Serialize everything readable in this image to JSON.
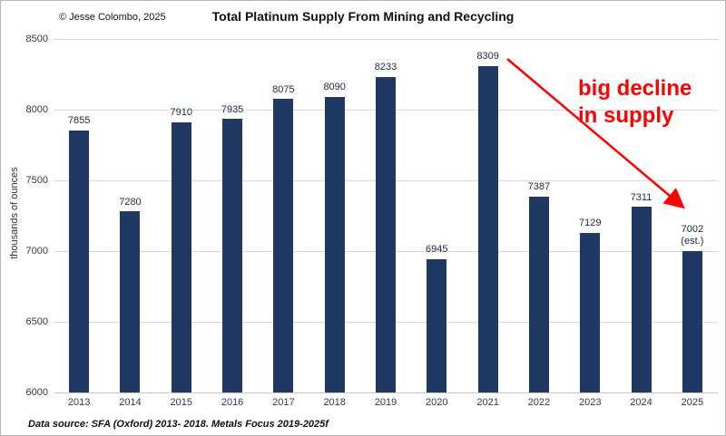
{
  "header": {
    "copyright": "© Jesse Colombo, 2025",
    "title": "Total Platinum Supply From Mining and Recycling"
  },
  "annotation": {
    "line1": "big decline",
    "line2": "in supply",
    "color": "#ff0000"
  },
  "footer": {
    "source": "Data source: SFA (Oxford) 2013- 2018. Metals Focus 2019-2025f"
  },
  "chart_data": {
    "type": "bar",
    "title": "Total Platinum Supply From Mining and Recycling",
    "categories": [
      "2013",
      "2014",
      "2015",
      "2016",
      "2017",
      "2018",
      "2019",
      "2020",
      "2021",
      "2022",
      "2023",
      "2024",
      "2025"
    ],
    "values": [
      7855,
      7280,
      7910,
      7935,
      8075,
      8090,
      8233,
      6945,
      8309,
      7387,
      7129,
      7311,
      7002
    ],
    "bar_labels": [
      "7855",
      "7280",
      "7910",
      "7935",
      "8075",
      "8090",
      "8233",
      "6945",
      "8309",
      "7387",
      "7129",
      "7311",
      "7002\n(est.)"
    ],
    "xlabel": "",
    "ylabel": "thousands of ounces",
    "ylim": [
      6000,
      8500
    ],
    "yticks": [
      6000,
      6500,
      7000,
      7500,
      8000,
      8500
    ],
    "grid": true,
    "legend": false,
    "bar_color": "#1F3864",
    "annotation": "big decline in supply"
  }
}
